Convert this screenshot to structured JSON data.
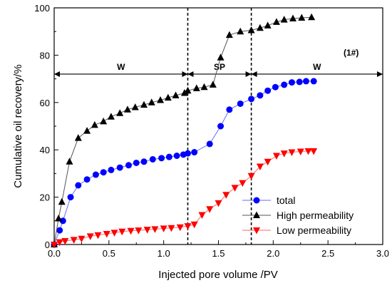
{
  "chart_data": {
    "type": "line",
    "xlabel": "Injected pore volume /PV",
    "ylabel": "Cumulative oil recovery/%",
    "xlim": [
      0.0,
      3.0
    ],
    "ylim": [
      0,
      100
    ],
    "x_ticks": [
      "0.0",
      "0.5",
      "1.0",
      "1.5",
      "2.0",
      "2.5",
      "3.0"
    ],
    "y_ticks": [
      "0",
      "20",
      "40",
      "60",
      "80",
      "100"
    ],
    "annotation": "(1#)",
    "phase_boundaries": [
      1.22,
      1.8
    ],
    "phases": [
      {
        "label": "W",
        "from": 0.0,
        "to": 1.22,
        "y": 72
      },
      {
        "label": "SP",
        "from": 1.22,
        "to": 1.8,
        "y": 72
      },
      {
        "label": "W",
        "from": 1.8,
        "to": 3.0,
        "y": 72
      }
    ],
    "series": [
      {
        "name": "total",
        "color": "#0000ff",
        "marker": "circle",
        "x": [
          0.0,
          0.05,
          0.08,
          0.15,
          0.22,
          0.3,
          0.38,
          0.45,
          0.52,
          0.6,
          0.68,
          0.75,
          0.82,
          0.9,
          0.98,
          1.05,
          1.12,
          1.18,
          1.22,
          1.28,
          1.42,
          1.52,
          1.6,
          1.7,
          1.8,
          1.88,
          1.95,
          2.02,
          2.1,
          2.17,
          2.24,
          2.3,
          2.37
        ],
        "y": [
          0,
          6,
          10,
          20,
          25,
          27.5,
          29.5,
          30.5,
          31.5,
          32.5,
          33.5,
          34.5,
          35,
          36,
          36.5,
          37,
          37.5,
          38,
          38.5,
          39,
          42.5,
          50,
          57,
          59.5,
          61.5,
          63,
          65,
          66.5,
          67.5,
          68.5,
          68.7,
          69,
          69
        ]
      },
      {
        "name": "High permeability",
        "color": "#000000",
        "marker": "triangle-up",
        "x": [
          0.0,
          0.04,
          0.07,
          0.14,
          0.22,
          0.3,
          0.37,
          0.45,
          0.52,
          0.6,
          0.67,
          0.74,
          0.82,
          0.89,
          0.97,
          1.04,
          1.11,
          1.19,
          1.22,
          1.3,
          1.37,
          1.45,
          1.52,
          1.6,
          1.7,
          1.8,
          1.88,
          1.95,
          2.03,
          2.1,
          2.18,
          2.26,
          2.35
        ],
        "y": [
          0,
          11,
          18,
          35,
          45,
          48,
          50.5,
          52,
          54,
          55.5,
          57,
          58,
          59,
          60,
          61,
          62,
          63,
          64,
          65,
          66,
          66.5,
          67.5,
          79,
          88.5,
          90,
          90.5,
          91.5,
          92.5,
          94,
          95,
          95.5,
          95.8,
          96
        ]
      },
      {
        "name": "Low permeability",
        "color": "#ff0000",
        "marker": "triangle-down",
        "x": [
          0.0,
          0.05,
          0.1,
          0.18,
          0.25,
          0.33,
          0.4,
          0.48,
          0.55,
          0.62,
          0.7,
          0.77,
          0.85,
          0.92,
          1.0,
          1.07,
          1.15,
          1.22,
          1.28,
          1.35,
          1.42,
          1.5,
          1.57,
          1.65,
          1.72,
          1.8,
          1.88,
          1.95,
          2.03,
          2.1,
          2.17,
          2.25,
          2.32,
          2.37
        ],
        "y": [
          0,
          1,
          1.5,
          2,
          2.5,
          3.5,
          4,
          4.5,
          5,
          5.5,
          5.8,
          6,
          6.3,
          6.5,
          6.8,
          7,
          7.3,
          7.8,
          8.5,
          12.5,
          15,
          17.5,
          21,
          24,
          26,
          29,
          33,
          35,
          37.5,
          38.5,
          39,
          39.3,
          39.5,
          39.5
        ]
      }
    ]
  }
}
